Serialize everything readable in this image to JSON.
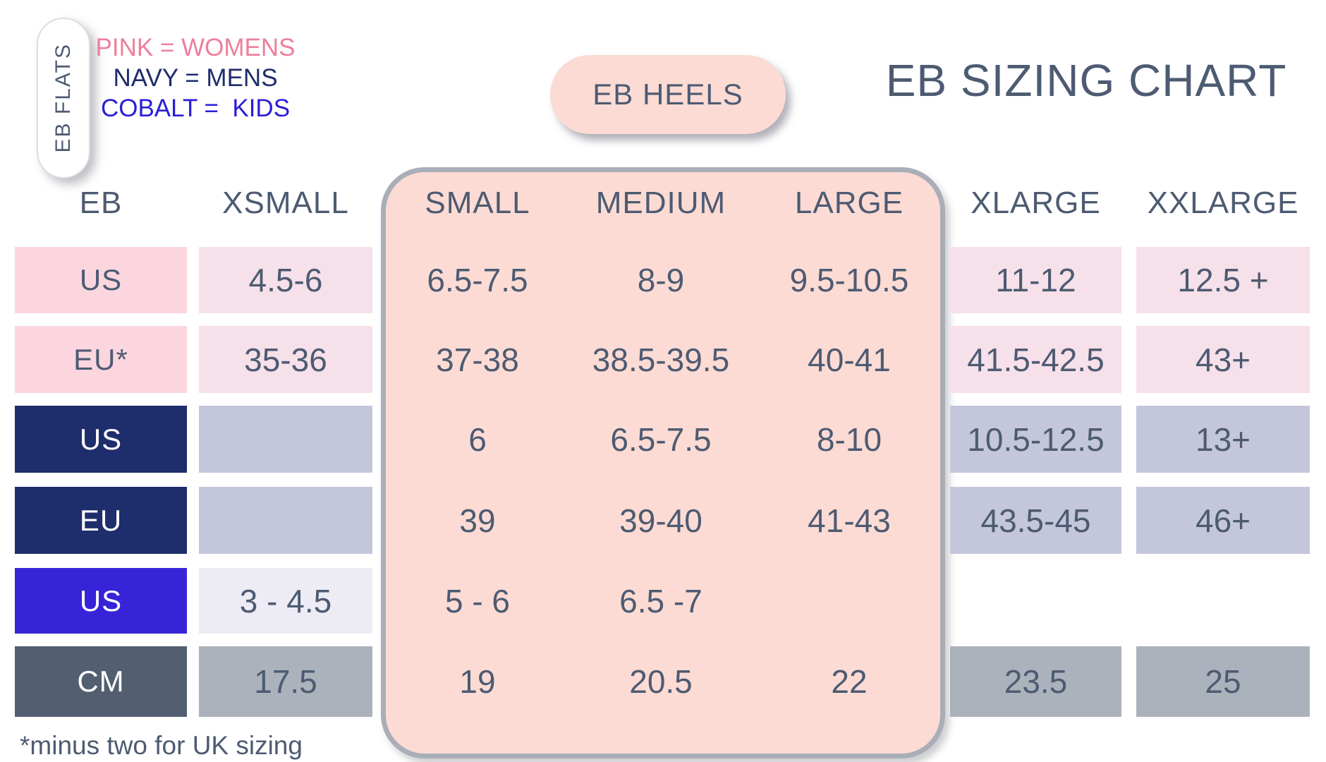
{
  "title": "EB SIZING CHART",
  "flats_tab": {
    "label": "EB FLATS"
  },
  "heels_tab": {
    "label": "EB HEELS"
  },
  "legend": [
    {
      "name": "womens",
      "text": "PINK = WOMENS",
      "color": "#ed7f9e"
    },
    {
      "name": "mens",
      "text": "NAVY = MENS",
      "color": "#1e2d6b"
    },
    {
      "name": "kids",
      "text": "COBALT =  KIDS",
      "color": "#2b1ed7"
    }
  ],
  "footnote": "*minus two for UK sizing",
  "table": {
    "headers": [
      "EB",
      "XSMALL",
      "SMALL",
      "MEDIUM",
      "LARGE",
      "XLARGE",
      "XXLARGE"
    ],
    "heels_columns": [
      "SMALL",
      "MEDIUM",
      "LARGE"
    ],
    "rows": [
      {
        "label": "US",
        "group": "womens",
        "values": [
          "4.5-6",
          "6.5-7.5",
          "8-9",
          "9.5-10.5",
          "11-12",
          "12.5 +"
        ]
      },
      {
        "label": "EU*",
        "group": "womens",
        "values": [
          "35-36",
          "37-38",
          "38.5-39.5",
          "40-41",
          "41.5-42.5",
          "43+"
        ]
      },
      {
        "label": "US",
        "group": "mens",
        "values": [
          "",
          "6",
          "6.5-7.5",
          "8-10",
          "10.5-12.5",
          "13+"
        ]
      },
      {
        "label": "EU",
        "group": "mens",
        "values": [
          "",
          "39",
          "39-40",
          "41-43",
          "43.5-45",
          "46+"
        ]
      },
      {
        "label": "US",
        "group": "kids",
        "values": [
          "3 - 4.5",
          "5 - 6",
          "6.5 -7",
          "",
          "",
          ""
        ]
      },
      {
        "label": "CM",
        "group": "cm",
        "values": [
          "17.5",
          "19",
          "20.5",
          "22",
          "23.5",
          "25"
        ]
      }
    ]
  },
  "colors": {
    "text_slate": "#4d5b72",
    "womens_label_bg": "#fbd6df",
    "womens_value_bg": "#f6e0e9",
    "mens_label_bg": "#1e2d6b",
    "mens_value_bg": "#c4c7db",
    "kids_label_bg": "#3724d8",
    "kids_value_bg": "#edecf4",
    "cm_label_bg": "#535f71",
    "cm_value_bg": "#acb2bc",
    "heels_bg": "#fcdbd4",
    "heels_border": "#a9aeb8",
    "legend_pink": "#ed7f9e",
    "legend_navy": "#1e2d6b",
    "legend_cobalt": "#2b1ed7"
  }
}
